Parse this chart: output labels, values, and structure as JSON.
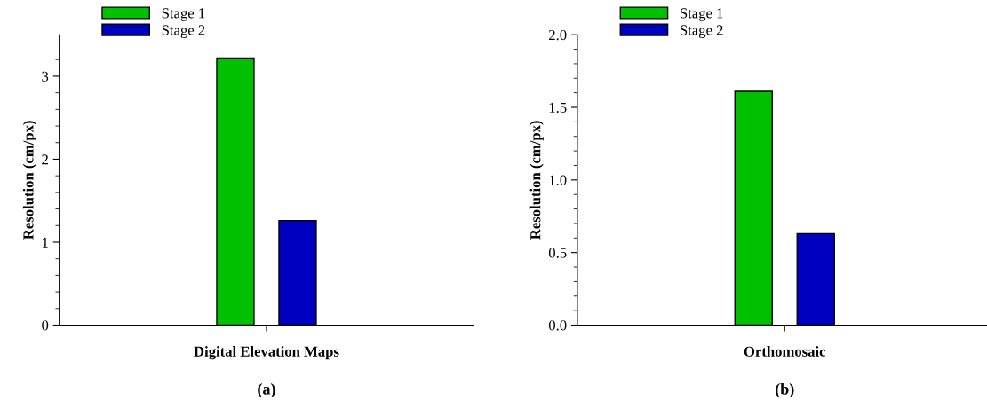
{
  "chart_data": [
    {
      "type": "bar",
      "categories": [
        "Digital Elevation Maps"
      ],
      "ylabel": "Resolution (cm/px)",
      "ylim": [
        0,
        3.5
      ],
      "yticks": [
        0,
        1,
        2,
        3
      ],
      "grid": false,
      "legend": "top left",
      "annotations": [
        "(a)"
      ],
      "series": [
        {
          "name": "Stage 1",
          "color": "#00c000",
          "values": [
            3.22
          ]
        },
        {
          "name": "Stage 2",
          "color": "#0000c0",
          "values": [
            1.26
          ]
        }
      ]
    },
    {
      "type": "bar",
      "categories": [
        "Orthomosaic"
      ],
      "ylabel": "Resolution (cm/px)",
      "ylim": [
        0,
        2.0
      ],
      "yticks": [
        {
          "value": 0,
          "label": "0.0"
        },
        0.5,
        {
          "value": 1,
          "label": "1.0"
        },
        1.5,
        {
          "value": 2,
          "label": "2.0"
        }
      ],
      "grid": false,
      "legend": "top left",
      "annotations": [
        "(b)"
      ],
      "series": [
        {
          "name": "Stage 1",
          "color": "#00c000",
          "values": [
            1.61
          ]
        },
        {
          "name": "Stage 2",
          "color": "#0000c0",
          "values": [
            0.63
          ]
        }
      ]
    }
  ]
}
